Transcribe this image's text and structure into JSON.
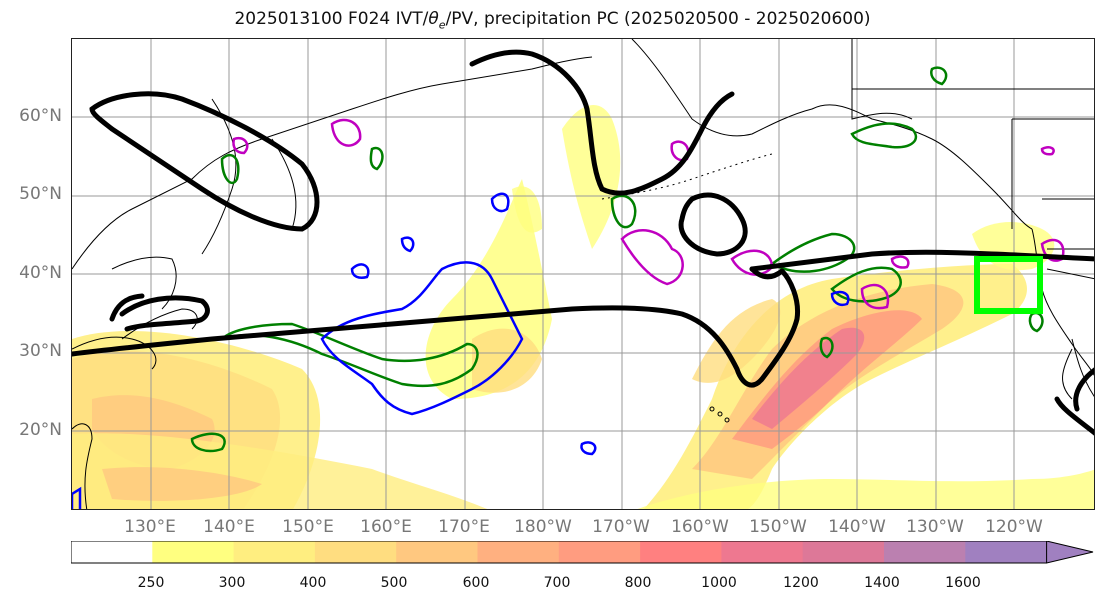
{
  "title": "2025013100 F024 IVT/θe/PV, precipitation PC (2025020500 - 2025020600)",
  "title_parts": {
    "prefix": "2025013100 F024 IVT/",
    "theta": "θ",
    "sub": "e",
    "suffix": "/PV, precipitation PC (2025020500 - 2025020600)"
  },
  "lat_labels": [
    "60°N",
    "50°N",
    "40°N",
    "30°N",
    "20°N"
  ],
  "lon_labels": [
    "130°E",
    "140°E",
    "150°E",
    "160°E",
    "170°E",
    "180°W",
    "170°W",
    "160°W",
    "150°W",
    "140°W",
    "130°W",
    "120°W"
  ],
  "colorbar": {
    "ticks": [
      "250",
      "300",
      "400",
      "500",
      "600",
      "700",
      "800",
      "1000",
      "1200",
      "1400",
      "1600"
    ],
    "colors": [
      "#ffffff",
      "#ffff80",
      "#ffee80",
      "#ffdd80",
      "#ffc880",
      "#ffb080",
      "#ff9c80",
      "#ff8080",
      "#ee7890",
      "#dd7898",
      "#bb80b0",
      "#a080c0"
    ]
  },
  "colors": {
    "ivt_contour": "#000000",
    "theta_e_contour": "#008000",
    "pv_contour": "#0000ff",
    "precip_contour": "#c000c0",
    "target_box": "#00ff00",
    "coastline": "#000000",
    "grid": "#999999"
  }
}
